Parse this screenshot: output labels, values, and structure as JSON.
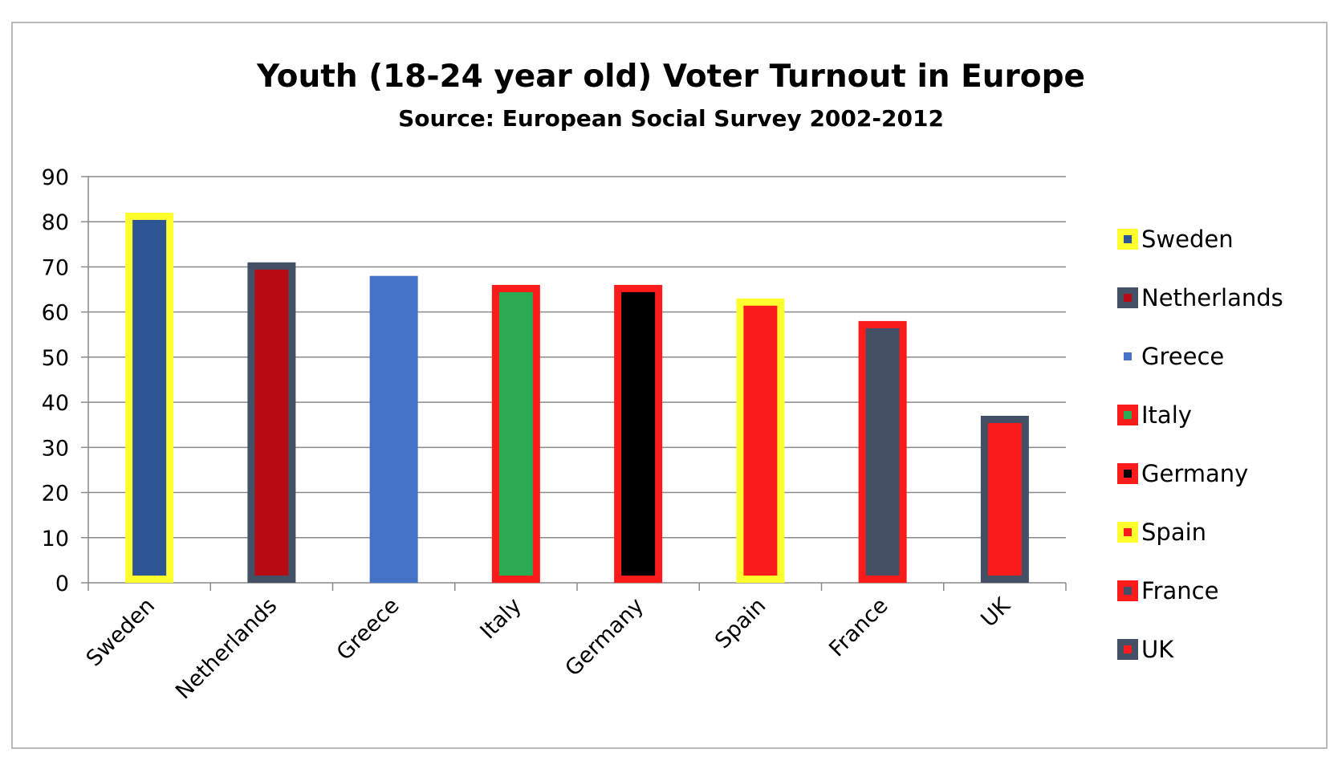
{
  "chart_data": {
    "type": "bar",
    "title": "Youth (18-24 year old) Voter Turnout in Europe",
    "subtitle": "Source: European Social Survey 2002-2012",
    "xlabel": "",
    "ylabel": "",
    "ylim": [
      0,
      90
    ],
    "yticks": [
      "0",
      "10",
      "20",
      "30",
      "40",
      "50",
      "60",
      "70",
      "80",
      "90"
    ],
    "grid": true,
    "legend_position": "right",
    "categories": [
      "Sweden",
      "Netherlands",
      "Greece",
      "Italy",
      "Germany",
      "Spain",
      "France",
      "UK"
    ],
    "values": [
      82,
      71,
      68,
      66,
      66,
      63,
      58,
      37
    ],
    "fill_colors": [
      "#2e5594",
      "#b70c13",
      "#4472c4",
      "#2aab52",
      "#000000",
      "#fb1b1b",
      "#435066",
      "#fb1b1b"
    ],
    "border_colors": [
      "#ffff2e",
      "#435066",
      "#4472c4",
      "#fb1b1b",
      "#fb1b1b",
      "#ffff2e",
      "#fb1b1b",
      "#435066"
    ]
  }
}
